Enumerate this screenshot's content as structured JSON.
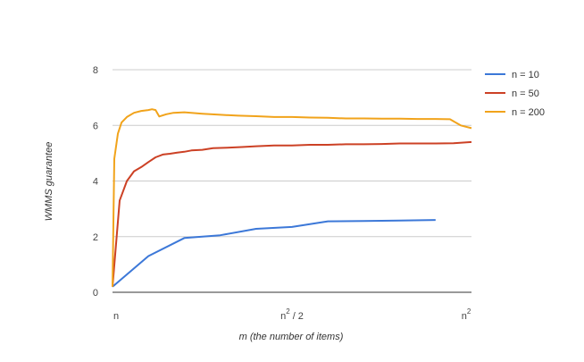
{
  "chart_data": {
    "type": "line",
    "title": "",
    "xlabel": "m (the number of items)",
    "ylabel": "WMMS guarantee",
    "ylim": [
      0,
      8
    ],
    "yticks": [
      0,
      2,
      4,
      6,
      8
    ],
    "xlim": [
      0,
      1
    ],
    "x_unit": "fraction of n^2 (n = start, n^2 = end)",
    "xticks": [
      {
        "x": 0.0,
        "label": "n",
        "sup": ""
      },
      {
        "x": 0.5,
        "label": "n / 2",
        "sup": "2"
      },
      {
        "x": 1.0,
        "label": "n",
        "sup": "2"
      }
    ],
    "grid": true,
    "legend_position": "right",
    "series": [
      {
        "name": "n = 10",
        "color": "#3c78d8",
        "points": [
          [
            0.0,
            0.2
          ],
          [
            0.1,
            1.3
          ],
          [
            0.2,
            1.95
          ],
          [
            0.3,
            2.05
          ],
          [
            0.4,
            2.28
          ],
          [
            0.5,
            2.35
          ],
          [
            0.6,
            2.55
          ],
          [
            0.7,
            2.56
          ],
          [
            0.8,
            2.58
          ],
          [
            0.9,
            2.6
          ]
        ]
      },
      {
        "name": "n = 50",
        "color": "#cc4125",
        "points": [
          [
            0.0,
            0.2
          ],
          [
            0.02,
            3.3
          ],
          [
            0.04,
            4.0
          ],
          [
            0.06,
            4.35
          ],
          [
            0.08,
            4.5
          ],
          [
            0.1,
            4.68
          ],
          [
            0.12,
            4.85
          ],
          [
            0.14,
            4.95
          ],
          [
            0.16,
            4.98
          ],
          [
            0.18,
            5.02
          ],
          [
            0.2,
            5.05
          ],
          [
            0.22,
            5.1
          ],
          [
            0.25,
            5.12
          ],
          [
            0.28,
            5.18
          ],
          [
            0.32,
            5.2
          ],
          [
            0.36,
            5.22
          ],
          [
            0.4,
            5.25
          ],
          [
            0.45,
            5.28
          ],
          [
            0.5,
            5.28
          ],
          [
            0.55,
            5.3
          ],
          [
            0.6,
            5.3
          ],
          [
            0.65,
            5.32
          ],
          [
            0.7,
            5.32
          ],
          [
            0.75,
            5.33
          ],
          [
            0.8,
            5.35
          ],
          [
            0.85,
            5.35
          ],
          [
            0.9,
            5.35
          ],
          [
            0.95,
            5.36
          ],
          [
            1.0,
            5.4
          ]
        ]
      },
      {
        "name": "n = 200",
        "color": "#f1a31b",
        "points": [
          [
            0.0,
            0.2
          ],
          [
            0.005,
            4.8
          ],
          [
            0.015,
            5.7
          ],
          [
            0.025,
            6.1
          ],
          [
            0.04,
            6.3
          ],
          [
            0.06,
            6.45
          ],
          [
            0.08,
            6.52
          ],
          [
            0.1,
            6.55
          ],
          [
            0.11,
            6.58
          ],
          [
            0.12,
            6.55
          ],
          [
            0.13,
            6.32
          ],
          [
            0.15,
            6.4
          ],
          [
            0.17,
            6.45
          ],
          [
            0.2,
            6.47
          ],
          [
            0.25,
            6.42
          ],
          [
            0.3,
            6.38
          ],
          [
            0.35,
            6.35
          ],
          [
            0.4,
            6.33
          ],
          [
            0.45,
            6.3
          ],
          [
            0.5,
            6.3
          ],
          [
            0.55,
            6.28
          ],
          [
            0.6,
            6.27
          ],
          [
            0.65,
            6.25
          ],
          [
            0.7,
            6.25
          ],
          [
            0.75,
            6.24
          ],
          [
            0.8,
            6.24
          ],
          [
            0.85,
            6.23
          ],
          [
            0.9,
            6.23
          ],
          [
            0.94,
            6.22
          ],
          [
            0.97,
            6.0
          ],
          [
            1.0,
            5.9
          ]
        ]
      }
    ]
  }
}
